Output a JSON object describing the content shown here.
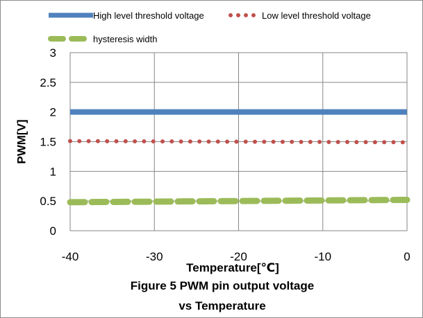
{
  "chart_data": {
    "type": "line",
    "xlabel": "Temperature[℃]",
    "ylabel": "PWM[V]",
    "xlim": [
      -40,
      0
    ],
    "ylim": [
      0,
      3
    ],
    "xticks": [
      -40,
      -30,
      -20,
      -10,
      0
    ],
    "yticks": [
      0,
      0.5,
      1,
      1.5,
      2,
      2.5,
      3
    ],
    "x_tick_labels": [
      "-40",
      "-30",
      "-20",
      "-10",
      "0"
    ],
    "y_tick_labels": [
      "0",
      "0.5",
      "1",
      "1.5",
      "2",
      "2.5",
      "3"
    ],
    "grid": true,
    "legend_position": "top",
    "series": [
      {
        "name": "High level threshold voltage",
        "style": "solid",
        "color": "#4f81bd",
        "x": [
          -40,
          0
        ],
        "y": [
          2.0,
          2.0
        ]
      },
      {
        "name": "Low level threshold voltage",
        "style": "dotted",
        "color": "#c0504d",
        "x": [
          -40,
          0
        ],
        "y": [
          1.51,
          1.49
        ]
      },
      {
        "name": "hysteresis width",
        "style": "dashed",
        "color": "#9bbb59",
        "x": [
          -40,
          0
        ],
        "y": [
          0.48,
          0.52
        ]
      }
    ]
  },
  "caption": {
    "line1": "Figure 5 PWM pin output voltage",
    "line2": "vs Temperature"
  }
}
